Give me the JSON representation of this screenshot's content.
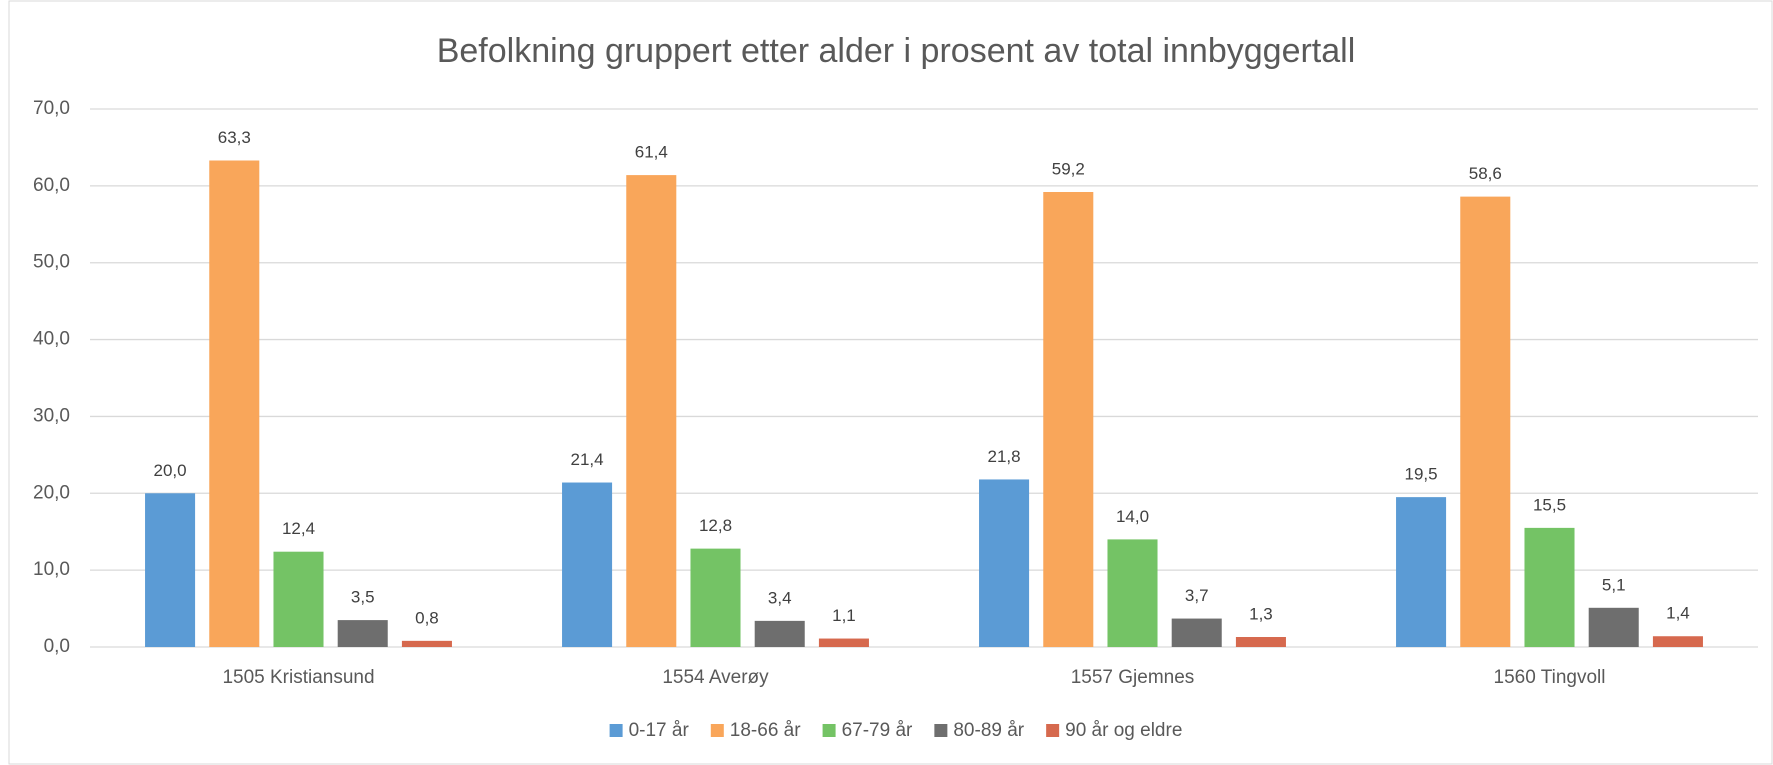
{
  "chart_data": {
    "type": "bar",
    "title": "Befolkning gruppert etter alder i prosent av total innbyggertall",
    "categories": [
      "1505 Kristiansund",
      "1554 Averøy",
      "1557 Gjemnes",
      "1560 Tingvoll"
    ],
    "series": [
      {
        "name": "0-17 år",
        "color": "#5b9bd5",
        "values": [
          20.0,
          21.4,
          21.8,
          19.5
        ],
        "value_labels": [
          "20,0",
          "21,4",
          "21,8",
          "19,5"
        ]
      },
      {
        "name": "18-66 år",
        "color": "#f9a65a",
        "values": [
          63.3,
          61.4,
          59.2,
          58.6
        ],
        "value_labels": [
          "63,3",
          "61,4",
          "59,2",
          "58,6"
        ]
      },
      {
        "name": "67-79 år",
        "color": "#74c365",
        "values": [
          12.4,
          12.8,
          14.0,
          15.5
        ],
        "value_labels": [
          "12,4",
          "12,8",
          "14,0",
          "15,5"
        ]
      },
      {
        "name": "80-89 år",
        "color": "#6e6e6e",
        "values": [
          3.5,
          3.4,
          3.7,
          5.1
        ],
        "value_labels": [
          "3,5",
          "3,4",
          "3,7",
          "5,1"
        ]
      },
      {
        "name": "90 år og eldre",
        "color": "#d6694e",
        "values": [
          0.8,
          1.1,
          1.3,
          1.4
        ],
        "value_labels": [
          "0,8",
          "1,1",
          "1,3",
          "1,4"
        ]
      }
    ],
    "ylim": [
      0,
      70
    ],
    "yticks": [
      {
        "value": 0,
        "label": "0,0"
      },
      {
        "value": 10,
        "label": "10,0"
      },
      {
        "value": 20,
        "label": "20,0"
      },
      {
        "value": 30,
        "label": "30,0"
      },
      {
        "value": 40,
        "label": "40,0"
      },
      {
        "value": 50,
        "label": "50,0"
      },
      {
        "value": 60,
        "label": "60,0"
      },
      {
        "value": 70,
        "label": "70,0"
      }
    ],
    "grid": true,
    "legend": "bottom"
  }
}
